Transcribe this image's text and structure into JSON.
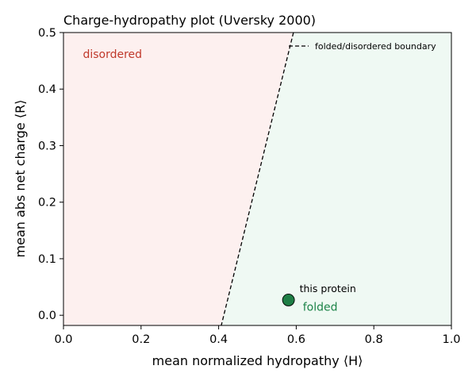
{
  "chart_data": {
    "type": "scatter",
    "title": "Charge-hydropathy plot (Uversky 2000)",
    "xlabel": "mean normalized hydropathy ⟨H⟩",
    "ylabel": "mean abs net charge ⟨R⟩",
    "xlim": [
      0.0,
      1.0
    ],
    "ylim": [
      -0.018,
      0.5
    ],
    "xticks": [
      0.0,
      0.2,
      0.4,
      0.6,
      0.8,
      1.0
    ],
    "xtick_labels": [
      "0.0",
      "0.2",
      "0.4",
      "0.6",
      "0.8",
      "1.0"
    ],
    "yticks": [
      0.0,
      0.1,
      0.2,
      0.3,
      0.4,
      0.5
    ],
    "ytick_labels": [
      "0.0",
      "0.1",
      "0.2",
      "0.3",
      "0.4",
      "0.5"
    ],
    "grid": false,
    "legend_position": "top-right",
    "boundary": {
      "name": "folded/disordered boundary",
      "slope": 2.785,
      "intercept": -1.151,
      "style": "dashed",
      "color": "#000000"
    },
    "regions": [
      {
        "label": "disordered",
        "side": "left",
        "color": "#fdf0ef",
        "label_color": "#c0392b"
      },
      {
        "label": "folded",
        "side": "right",
        "color": "#eff9f3",
        "label_color": "#1e8449"
      }
    ],
    "points": [
      {
        "x": 0.58,
        "y": 0.027,
        "label": "this protein",
        "color": "#1e7e45"
      }
    ]
  }
}
